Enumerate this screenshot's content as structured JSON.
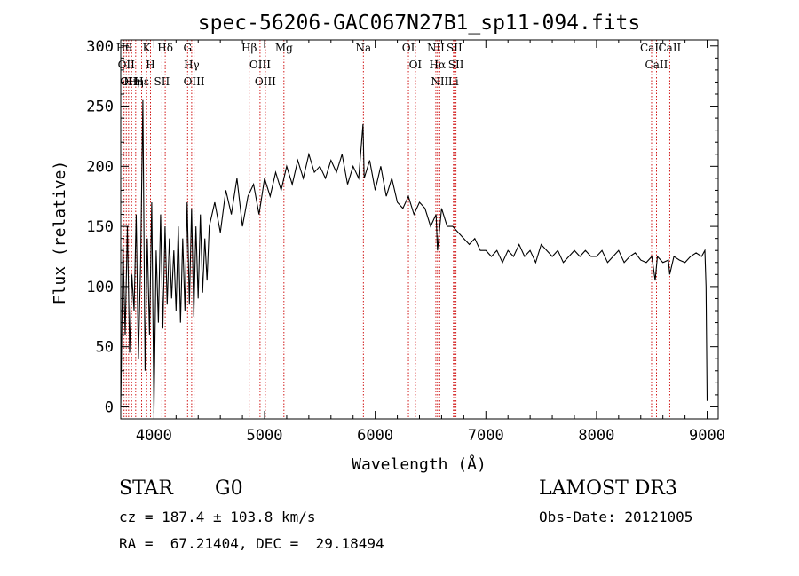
{
  "chart_data": {
    "type": "line",
    "title": "spec-56206-GAC067N27B1_sp11-094.fits",
    "xlabel": "Wavelength (Å)",
    "ylabel": "Flux (relative)",
    "xlim": [
      3700,
      9100
    ],
    "ylim": [
      -10,
      305
    ],
    "xticks": [
      4000,
      5000,
      6000,
      7000,
      8000,
      9000
    ],
    "yticks": [
      0,
      50,
      100,
      150,
      200,
      250,
      300
    ],
    "grid": false,
    "series": [
      {
        "name": "spectrum",
        "color": "#000000",
        "x": [
          3700,
          3720,
          3740,
          3760,
          3780,
          3800,
          3820,
          3840,
          3860,
          3880,
          3900,
          3920,
          3940,
          3960,
          3980,
          4000,
          4020,
          4040,
          4060,
          4080,
          4100,
          4120,
          4140,
          4160,
          4180,
          4200,
          4220,
          4240,
          4260,
          4280,
          4300,
          4320,
          4340,
          4360,
          4380,
          4400,
          4420,
          4440,
          4460,
          4480,
          4500,
          4550,
          4600,
          4650,
          4700,
          4750,
          4800,
          4850,
          4900,
          4950,
          5000,
          5050,
          5100,
          5150,
          5200,
          5250,
          5300,
          5350,
          5400,
          5450,
          5500,
          5550,
          5600,
          5650,
          5700,
          5750,
          5800,
          5850,
          5890,
          5900,
          5950,
          6000,
          6050,
          6100,
          6150,
          6200,
          6250,
          6300,
          6350,
          6400,
          6450,
          6500,
          6550,
          6563,
          6600,
          6650,
          6700,
          6750,
          6800,
          6850,
          6900,
          6950,
          7000,
          7050,
          7100,
          7150,
          7200,
          7250,
          7300,
          7350,
          7400,
          7450,
          7500,
          7550,
          7600,
          7650,
          7700,
          7750,
          7800,
          7850,
          7900,
          7950,
          8000,
          8050,
          8100,
          8150,
          8200,
          8250,
          8300,
          8350,
          8400,
          8450,
          8500,
          8530,
          8550,
          8600,
          8650,
          8662,
          8700,
          8750,
          8800,
          8850,
          8900,
          8950,
          8980,
          8990,
          9000
        ],
        "values": [
          0,
          135,
          60,
          150,
          45,
          110,
          80,
          160,
          40,
          120,
          255,
          30,
          140,
          60,
          170,
          -5,
          130,
          70,
          160,
          65,
          150,
          85,
          140,
          90,
          130,
          80,
          150,
          70,
          140,
          80,
          170,
          85,
          165,
          75,
          150,
          90,
          160,
          95,
          140,
          105,
          150,
          170,
          145,
          180,
          160,
          190,
          150,
          175,
          185,
          160,
          190,
          175,
          195,
          180,
          200,
          185,
          205,
          190,
          210,
          195,
          200,
          190,
          205,
          195,
          210,
          185,
          200,
          190,
          235,
          190,
          205,
          180,
          200,
          175,
          190,
          170,
          165,
          175,
          160,
          170,
          165,
          150,
          160,
          130,
          165,
          150,
          150,
          145,
          140,
          135,
          140,
          130,
          130,
          125,
          130,
          120,
          130,
          125,
          135,
          125,
          130,
          120,
          135,
          130,
          125,
          130,
          120,
          125,
          130,
          125,
          130,
          125,
          125,
          130,
          120,
          125,
          130,
          120,
          125,
          128,
          122,
          120,
          125,
          105,
          125,
          120,
          122,
          110,
          125,
          122,
          120,
          125,
          128,
          125,
          130,
          100,
          5
        ]
      }
    ],
    "lines": [
      {
        "x": 3730,
        "label": "Hθ"
      },
      {
        "x": 3750,
        "label": "OII"
      },
      {
        "x": 3771,
        "label": "OII"
      },
      {
        "x": 3798,
        "label": "Hη"
      },
      {
        "x": 3835,
        "label": "Hη"
      },
      {
        "x": 3889,
        "label": "Hε"
      },
      {
        "x": 3934,
        "label": "K"
      },
      {
        "x": 3969,
        "label": "H"
      },
      {
        "x": 4072,
        "label": "SII"
      },
      {
        "x": 4102,
        "label": "Hδ"
      },
      {
        "x": 4304,
        "label": "G"
      },
      {
        "x": 4341,
        "label": "Hγ"
      },
      {
        "x": 4363,
        "label": "OIII"
      },
      {
        "x": 4861,
        "label": "Hβ"
      },
      {
        "x": 4959,
        "label": "OIII"
      },
      {
        "x": 5007,
        "label": "OIII"
      },
      {
        "x": 5175,
        "label": "Mg"
      },
      {
        "x": 5893,
        "label": "Na"
      },
      {
        "x": 6300,
        "label": "OI"
      },
      {
        "x": 6363,
        "label": "OI"
      },
      {
        "x": 6548,
        "label": "NII"
      },
      {
        "x": 6563,
        "label": "Hα"
      },
      {
        "x": 6583,
        "label": "NII"
      },
      {
        "x": 6707,
        "label": "Li"
      },
      {
        "x": 6716,
        "label": "SII"
      },
      {
        "x": 6730,
        "label": "SII"
      },
      {
        "x": 8498,
        "label": "CaII"
      },
      {
        "x": 8542,
        "label": "CaII"
      },
      {
        "x": 8662,
        "label": "CaII"
      }
    ]
  },
  "info": {
    "class": "STAR",
    "subclass": "G0",
    "survey": "LAMOST DR3",
    "cz": "cz = 187.4 ± 103.8 km/s",
    "obs_date": "Obs-Date: 20121005",
    "radec": "RA =  67.21404, DEC =  29.18494"
  }
}
